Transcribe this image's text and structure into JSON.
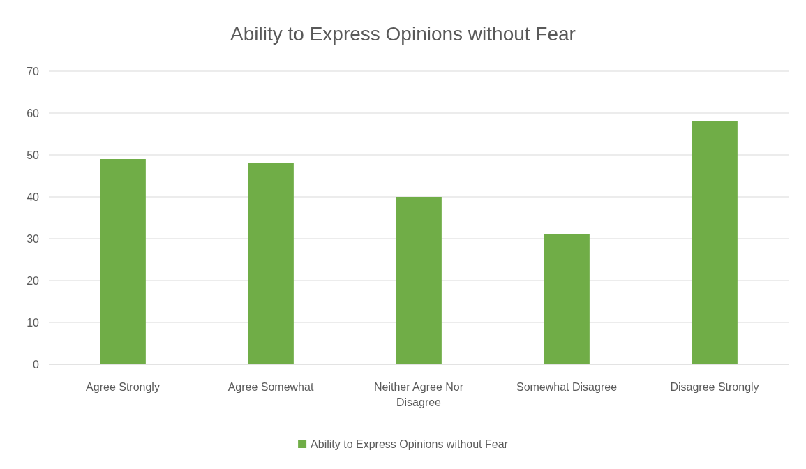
{
  "chart_data": {
    "type": "bar",
    "title": "Ability to Express Opinions without Fear",
    "categories": [
      "Agree Strongly",
      "Agree Somewhat",
      "Neither Agree Nor Disagree",
      "Somewhat Disagree",
      "Disagree Strongly"
    ],
    "series": [
      {
        "name": "Ability to Express Opinions without Fear",
        "color": "#70ad47",
        "values": [
          49,
          48,
          40,
          31,
          58
        ]
      }
    ],
    "ylim": [
      0,
      70
    ],
    "yticks": [
      0,
      10,
      20,
      30,
      40,
      50,
      60,
      70
    ],
    "grid": "y",
    "legend": "bottom"
  }
}
